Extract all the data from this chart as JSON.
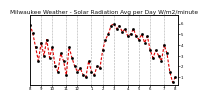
{
  "title": "Milwaukee Weather - Solar Radiation Avg per Day W/m2/minute",
  "title_fontsize": 4.2,
  "background_color": "#ffffff",
  "plot_bg_color": "#ffffff",
  "grid_color": "#aaaaaa",
  "line_color": "#dd0000",
  "marker_color": "#000000",
  "ylim": [
    0.3,
    6.8
  ],
  "xlim": [
    0,
    53
  ],
  "values": [
    5.9,
    5.1,
    3.8,
    2.5,
    4.2,
    3.0,
    4.5,
    2.8,
    3.8,
    2.0,
    1.5,
    3.2,
    2.5,
    1.2,
    3.8,
    2.8,
    2.0,
    1.5,
    1.8,
    1.2,
    1.0,
    2.5,
    1.5,
    1.2,
    2.0,
    1.8,
    3.5,
    4.5,
    5.0,
    5.8,
    6.0,
    5.5,
    5.8,
    5.2,
    5.5,
    4.8,
    5.0,
    5.5,
    4.8,
    4.5,
    5.0,
    4.2,
    4.8,
    3.5,
    2.8,
    3.5,
    3.0,
    2.5,
    4.0,
    3.2,
    1.5,
    0.5,
    1.0
  ],
  "grid_x_positions": [
    4,
    8,
    13,
    17,
    22,
    26,
    30,
    35,
    39,
    43,
    48
  ],
  "x_tick_labels": [
    "8",
    "9",
    "10",
    "11",
    "12",
    "1",
    "2",
    "3",
    "4",
    "5",
    "6",
    "7",
    "8"
  ],
  "x_tick_positions": [
    0,
    4,
    8,
    13,
    17,
    22,
    26,
    30,
    35,
    39,
    43,
    48,
    52
  ],
  "right_tick_labels": [
    "6",
    "5",
    "4",
    "3",
    "2",
    "1"
  ],
  "right_tick_positions": [
    6,
    5,
    4,
    3,
    2,
    1
  ]
}
